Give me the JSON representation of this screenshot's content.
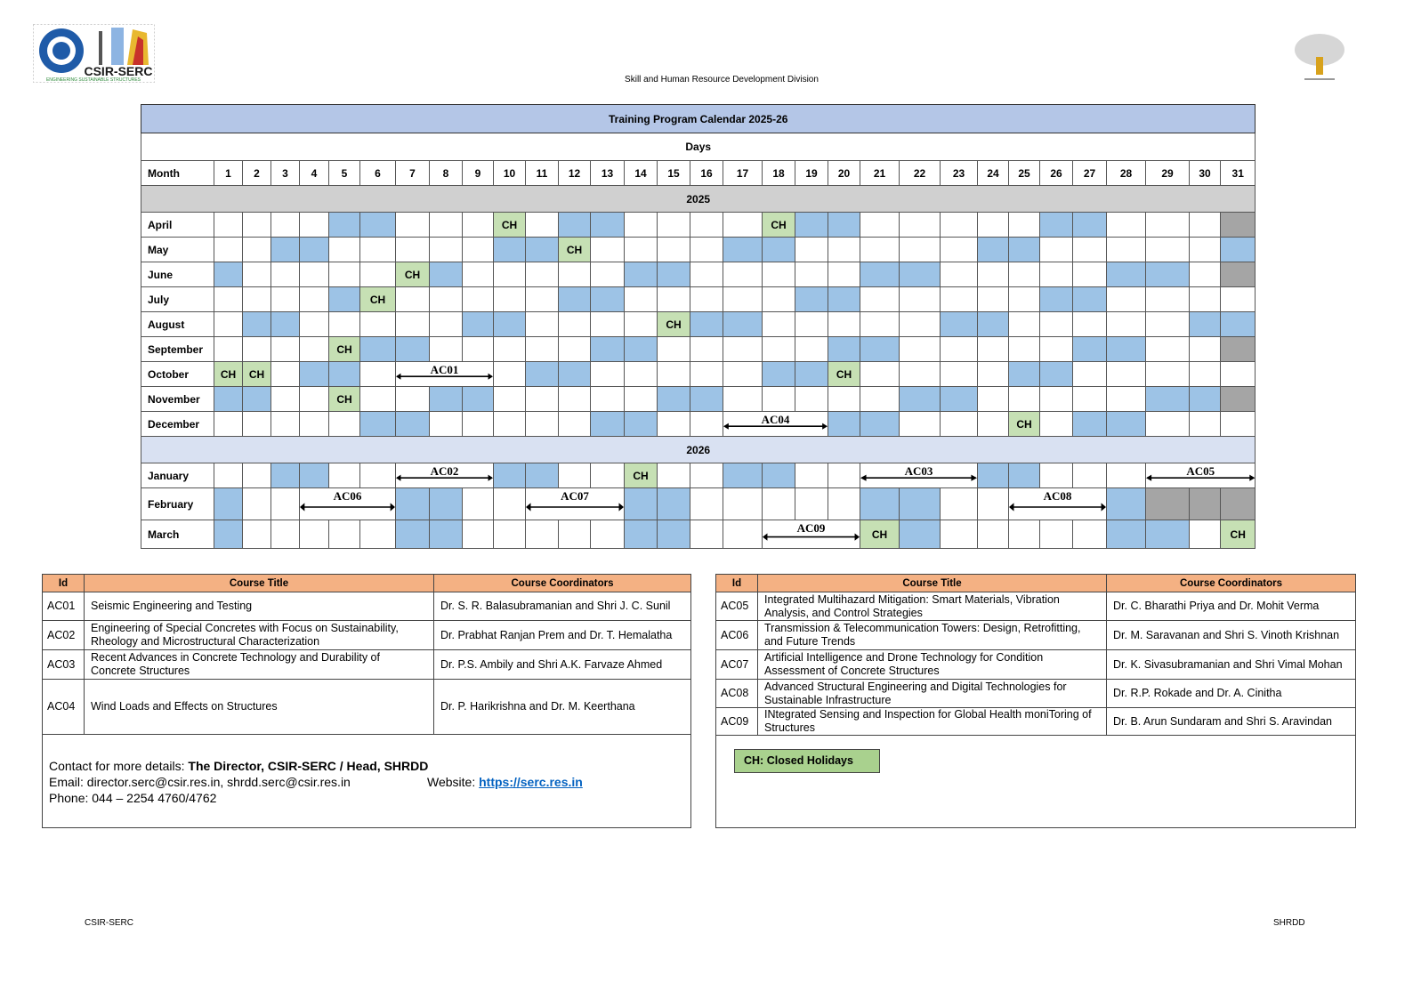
{
  "header": {
    "logo_left_text": "CSIR-SERC",
    "logo_left_tagline": "ENGINEERING SUSTAINABLE STRUCTURES",
    "division": "Skill and Human Resource Development Division"
  },
  "calendar": {
    "title": "Training Program Calendar 2025-26",
    "days_label": "Days",
    "month_label": "Month",
    "days": [
      "1",
      "2",
      "3",
      "4",
      "5",
      "6",
      "7",
      "8",
      "9",
      "10",
      "11",
      "12",
      "13",
      "14",
      "15",
      "16",
      "17",
      "18",
      "19",
      "20",
      "21",
      "22",
      "23",
      "24",
      "25",
      "26",
      "27",
      "28",
      "29",
      "30",
      "31"
    ],
    "legend_codes": {
      "B": "blue-course-day",
      "C": "closed-holiday",
      "G": "non-existent-day",
      ".": "empty"
    },
    "colors": {
      "blue": "#9dc3e6",
      "holiday": "#c6e0b4",
      "invalid": "#a5a5a5",
      "title_bg": "#b4c6e7",
      "year2025_bg": "#d0d0d0",
      "year2026_bg": "#d9e1f2"
    },
    "holiday_label": "CH",
    "years": [
      {
        "year": "2025",
        "months": [
          {
            "name": "April",
            "cells": "....BB...C.BB....CBB.....BB...G",
            "arrows": []
          },
          {
            "name": "May",
            "cells": "..BB.....BBC....BB.....BB.....B",
            "arrows": []
          },
          {
            "name": "June",
            "cells": "B.....CB.....BB.....BB.....BB.G",
            "arrows": []
          },
          {
            "name": "July",
            "cells": "....BC.....BB.....BB.....BB....",
            "arrows": []
          },
          {
            "name": "August",
            "cells": ".BB.....BB....CBB.....BB.....BB",
            "arrows": []
          },
          {
            "name": "September",
            "cells": "....CBB.....BB.....BB.....BB..G",
            "arrows": []
          },
          {
            "name": "October",
            "cells": "CC.BB.....BB.....BBC....BB.....",
            "arrows": [
              {
                "label": "AC01",
                "start": 7,
                "end": 9
              }
            ]
          },
          {
            "name": "November",
            "cells": "BB..C..BB.....BB.....BB.....BBG",
            "arrows": []
          },
          {
            "name": "December",
            "cells": ".....BB.....BB.....BB...C.BB...",
            "arrows": [
              {
                "label": "AC04",
                "start": 17,
                "end": 19
              }
            ]
          }
        ]
      },
      {
        "year": "2026",
        "months": [
          {
            "name": "January",
            "cells": "..BB.....BB..C..BB.....BB......",
            "arrows": [
              {
                "label": "AC02",
                "start": 7,
                "end": 9
              },
              {
                "label": "AC03",
                "start": 21,
                "end": 23
              },
              {
                "label": "AC05",
                "start": 29,
                "end": 31
              }
            ]
          },
          {
            "name": "February",
            "cells": "B.....BB.....BB.....BB.....BGGG",
            "arrows": [
              {
                "label": "AC06",
                "start": 4,
                "end": 6
              },
              {
                "label": "AC07",
                "start": 11,
                "end": 13
              },
              {
                "label": "AC08",
                "start": 25,
                "end": 27
              }
            ]
          },
          {
            "name": "March",
            "cells": "B.....BB.....BB.....CB.....BB.C",
            "arrows": [
              {
                "label": "AC09",
                "start": 18,
                "end": 20
              }
            ]
          }
        ]
      }
    ]
  },
  "courses": {
    "headers": {
      "id": "Id",
      "title": "Course Title",
      "coordinators": "Course Coordinators"
    },
    "header_color": "#f4b183",
    "left": [
      {
        "id": "AC01",
        "title": "Seismic Engineering and Testing",
        "coordinators": "Dr. S. R. Balasubramanian and Shri J. C. Sunil"
      },
      {
        "id": "AC02",
        "title": "Engineering of Special Concretes with Focus on Sustainability, Rheology and Microstructural Characterization",
        "coordinators": "Dr. Prabhat Ranjan Prem and Dr. T. Hemalatha"
      },
      {
        "id": "AC03",
        "title": "Recent Advances in Concrete Technology and Durability of Concrete Structures",
        "coordinators": "Dr. P.S. Ambily and Shri A.K. Farvaze Ahmed"
      },
      {
        "id": "AC04",
        "title": "Wind Loads and Effects on Structures",
        "coordinators": "Dr. P. Harikrishna and Dr. M. Keerthana"
      }
    ],
    "right": [
      {
        "id": "AC05",
        "title": "Integrated Multihazard Mitigation: Smart Materials, Vibration Analysis, and Control Strategies",
        "coordinators": "Dr. C. Bharathi Priya and Dr. Mohit Verma"
      },
      {
        "id": "AC06",
        "title": "Transmission & Telecommunication Towers: Design, Retrofitting, and Future Trends",
        "coordinators": "Dr. M. Saravanan and Shri S. Vinoth Krishnan"
      },
      {
        "id": "AC07",
        "title": "Artificial Intelligence and Drone Technology for Condition Assessment of Concrete Structures",
        "coordinators": "Dr. K. Sivasubramanian and Shri Vimal Mohan"
      },
      {
        "id": "AC08",
        "title": "Advanced Structural Engineering and Digital Technologies for Sustainable Infrastructure",
        "coordinators": "Dr. R.P. Rokade and Dr. A. Cinitha"
      },
      {
        "id": "AC09",
        "title": "INtegrated Sensing and Inspection for Global Health moniToring of Structures",
        "coordinators": "Dr. B. Arun Sundaram and Shri S. Aravindan"
      }
    ]
  },
  "contact": {
    "prefix": "Contact for more details: ",
    "who": "The Director, CSIR-SERC / Head, SHRDD",
    "email": "Email: director.serc@csir.res.in, shrdd.serc@csir.res.in",
    "website_label": "Website: ",
    "website": "https://serc.res.in",
    "phone": "Phone: 044 – 2254 4760/4762"
  },
  "legend": {
    "text": "CH: Closed Holidays",
    "color": "#a9d18e"
  },
  "footer": {
    "left": "CSIR-SERC",
    "right": "SHRDD"
  }
}
